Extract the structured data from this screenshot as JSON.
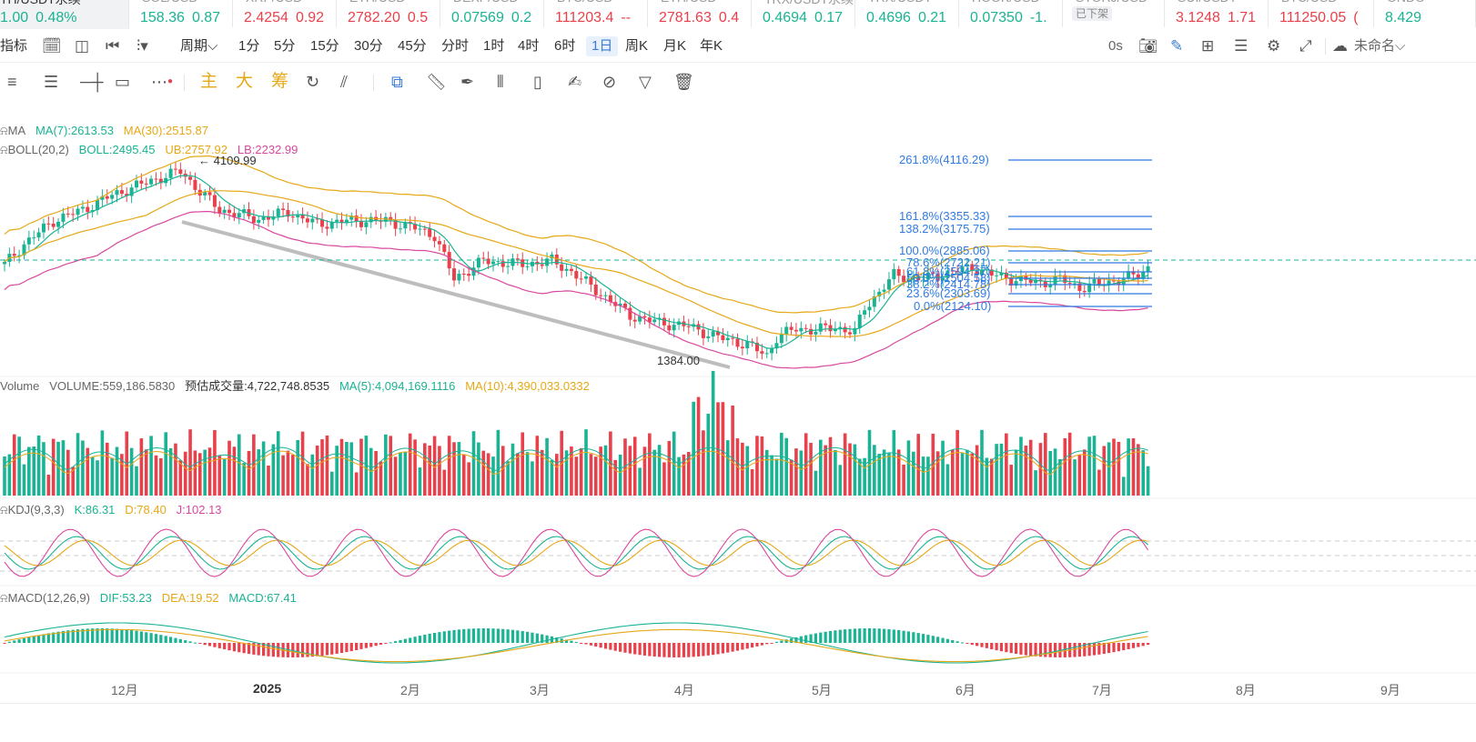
{
  "ticker": [
    {
      "name": "TH/USDT永续",
      "price": "1.00",
      "change": "0.48%",
      "dir": "up",
      "selected": true
    },
    {
      "name": "SOL/USD",
      "price": "158.36",
      "change": "0.87",
      "dir": "up"
    },
    {
      "name": "XRP/USD",
      "price": "2.4254",
      "change": "0.92",
      "dir": "dn"
    },
    {
      "name": "ETH/USD",
      "price": "2782.20",
      "change": "0.5",
      "dir": "dn"
    },
    {
      "name": "DEXP/USD",
      "price": "0.07569",
      "change": "0.2",
      "dir": "up"
    },
    {
      "name": "BTC/USD",
      "price": "111203.4",
      "change": "--",
      "dir": "dn"
    },
    {
      "name": "ETH/USD",
      "price": "2781.63",
      "change": "0.4",
      "dir": "dn"
    },
    {
      "name": "TRX/USDT永续",
      "price": "0.4694",
      "change": "0.17",
      "dir": "up"
    },
    {
      "name": "TRX/USDT",
      "price": "0.4696",
      "change": "0.21",
      "dir": "up"
    },
    {
      "name": "HOOK/USD",
      "price": "0.07350",
      "change": "-1.",
      "dir": "up"
    },
    {
      "name": "STORJ/USD",
      "price": "",
      "change": "",
      "dir": "up",
      "badge": "已下架"
    },
    {
      "name": "SUI/USDT",
      "price": "3.1248",
      "change": "1.71",
      "dir": "dn"
    },
    {
      "name": "BTC/USD",
      "price": "111250.05",
      "change": "(",
      "dir": "dn"
    },
    {
      "name": "ONDO",
      "price": "8.429",
      "change": "",
      "dir": "up"
    }
  ],
  "toolbar": {
    "indicator": "指标",
    "period": "周期",
    "periods": [
      "1分",
      "5分",
      "15分",
      "30分",
      "45分",
      "分时",
      "1时",
      "4时",
      "6时",
      "1日",
      "周K",
      "月K",
      "年K"
    ],
    "active_period": "1日",
    "countdown": "0s",
    "layout_name": "未命名"
  },
  "drawtools": {
    "main": "主",
    "big": "大",
    "chip": "筹"
  },
  "legend": {
    "ma": {
      "name": "MA",
      "ma7": "MA(7):2613.53",
      "ma30": "MA(30):2515.87"
    },
    "boll": {
      "name": "BOLL(20,2)",
      "mid": "BOLL:2495.45",
      "ub": "UB:2757.92",
      "lb": "LB:2232.99"
    },
    "volume": {
      "name": "Volume",
      "vol": "VOLUME:559,186.5830",
      "est": "预估成交量:4,722,748.8535",
      "ma5": "MA(5):4,094,169.1116",
      "ma10": "MA(10):4,390,033.0332"
    },
    "kdj": {
      "name": "KDJ(9,3,3)",
      "k": "K:86.31",
      "d": "D:78.40",
      "j": "J:102.13"
    },
    "macd": {
      "name": "MACD(12,26,9)",
      "dif": "DIF:53.23",
      "dea": "DEA:19.52",
      "macd": "MACD:67.41"
    }
  },
  "annotations": {
    "high": "4109.99",
    "low": "1384.00"
  },
  "fibonacci": [
    {
      "label": "261.8%(4116.29)",
      "level": 4116.29
    },
    {
      "label": "161.8%(3355.33)",
      "level": 3355.33
    },
    {
      "label": "138.2%(3175.75)",
      "level": 3175.75
    },
    {
      "label": "100.0%(2885.06)",
      "level": 2885.06
    },
    {
      "label": "78.6%(2722.21)",
      "level": 2722.21
    },
    {
      "label": "61.8%(2594.37)",
      "level": 2594.37
    },
    {
      "label": "50.0%(2504.58)",
      "level": 2504.58
    },
    {
      "label": "38.2%(2414.78)",
      "level": 2414.78
    },
    {
      "label": "23.6%(2303.69)",
      "level": 2303.69
    },
    {
      "label": "0.0%(2124.10)",
      "level": 2124.1
    }
  ],
  "xaxis": [
    "12月",
    "2025",
    "2月",
    "3月",
    "4月",
    "5月",
    "6月",
    "7月",
    "8月",
    "9月"
  ],
  "colors": {
    "up": "#1ab394",
    "down": "#e8414b",
    "ma7": "#1ab394",
    "ma30": "#e6a817",
    "boll_ub": "#e6a817",
    "boll_lb": "#d9489e",
    "fib": "#2f7be0",
    "trend": "#bdbdbd"
  }
}
